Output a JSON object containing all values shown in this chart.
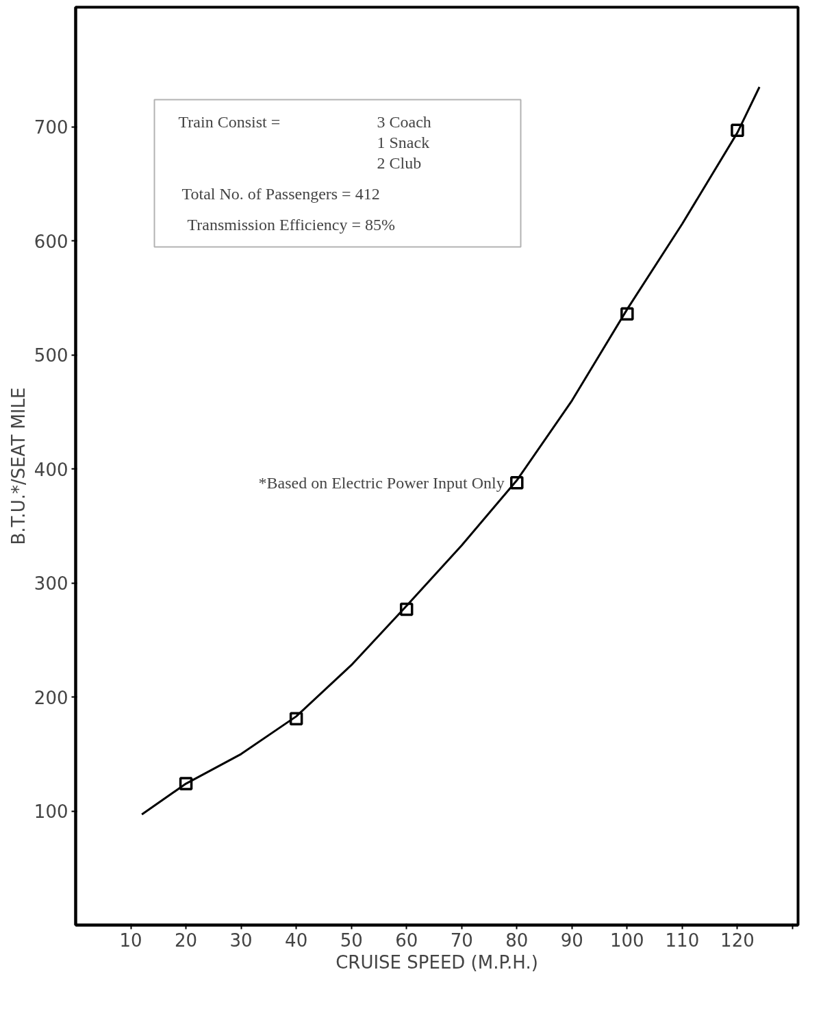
{
  "chart_data": {
    "type": "scatter",
    "xlabel": "CRUISE SPEED (M.P.H.)",
    "ylabel": "B.T.U.*/SEAT MILE",
    "xlim": [
      0,
      131
    ],
    "ylim": [
      0,
      805
    ],
    "xticks": [
      10,
      20,
      30,
      40,
      50,
      60,
      70,
      80,
      90,
      100,
      110,
      120,
      {
        "value": 130,
        "label": null
      }
    ],
    "yticks": [
      100,
      200,
      300,
      400,
      500,
      600,
      700
    ],
    "grid": false,
    "marker": "square",
    "series": [
      {
        "color": "#000000",
        "x": [
          20,
          40,
          60,
          80,
          100,
          120
        ],
        "values": [
          124,
          181,
          277,
          388,
          536,
          697
        ]
      },
      {
        "type": "line",
        "color": "#000000",
        "marker": "none",
        "line_style": "solid",
        "x": [
          12,
          20,
          30,
          40,
          50,
          60,
          70,
          80,
          90,
          100,
          110,
          120,
          124
        ],
        "values": [
          97,
          124,
          150,
          183,
          228,
          280,
          333,
          390,
          460,
          540,
          615,
          695,
          735
        ]
      }
    ],
    "annotations": [
      "Train Consist =",
      "3 Coach",
      "1 Snack",
      "2 Club",
      "Total No. of Passengers = 412",
      "Transmission Efficiency = 85%",
      {
        "text": "*Based on Electric Power Input Only",
        "x": 80,
        "y": 388
      }
    ]
  }
}
